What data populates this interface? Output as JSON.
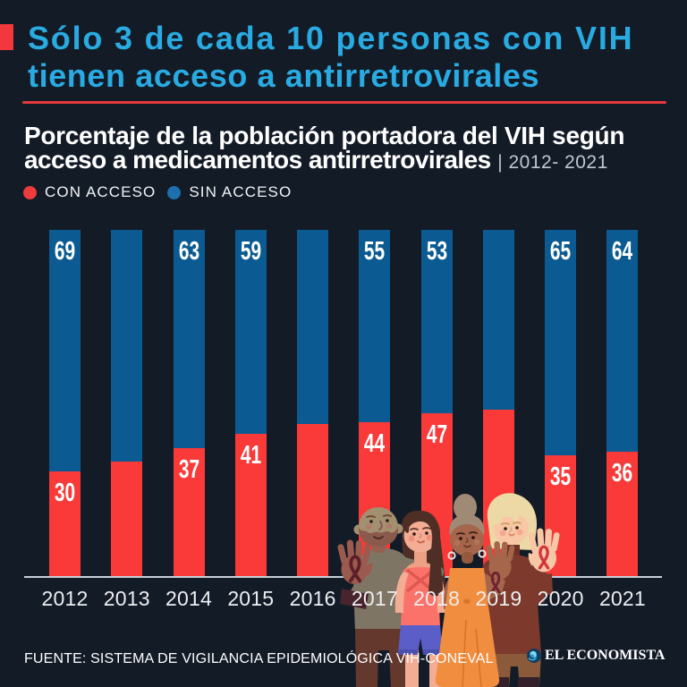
{
  "colors": {
    "background": "#131b27",
    "red": "#f93a39",
    "blue": "#0b5b92",
    "title_cyan": "#29abe2",
    "legend_red_dot": "#ee3b3d",
    "legend_blue_dot": "#1d6fae",
    "axis_line": "#c9cfd7",
    "white": "#ffffff"
  },
  "header": {
    "title_line1": "Sólo 3 de cada 10 personas con VIH",
    "title_line2": "tienen acceso a antirretrovirales"
  },
  "subtitle": {
    "line1": "Porcentaje de la población portadora del VIH según",
    "line2_bold": "acceso a medicamentos antirretrovirales",
    "period": "| 2012- 2021"
  },
  "legend": {
    "items": [
      {
        "label": "CON ACCESO",
        "color": "#ee3b3d"
      },
      {
        "label": "SIN ACCESO",
        "color": "#1d6fae"
      }
    ]
  },
  "chart_data": {
    "type": "bar",
    "stacked": true,
    "units": "percent",
    "title": "Porcentaje de la población portadora del VIH según acceso a medicamentos antirretrovirales",
    "period": "2012-2021",
    "categories": [
      "2012",
      "2013",
      "2014",
      "2015",
      "2016",
      "2017",
      "2018",
      "2019",
      "2020",
      "2021"
    ],
    "series": [
      {
        "name": "CON ACCESO",
        "color": "#f93a39",
        "values": [
          30,
          33,
          37,
          41,
          44,
          44,
          47,
          48,
          35,
          36
        ],
        "labels": [
          "30",
          "",
          "37",
          "41",
          "",
          "44",
          "47",
          "",
          "35",
          "36"
        ]
      },
      {
        "name": "SIN ACCESO",
        "color": "#0b5b92",
        "values": [
          69,
          67,
          63,
          59,
          56,
          55,
          53,
          52,
          65,
          64
        ],
        "labels": [
          "69",
          "",
          "63",
          "59",
          "",
          "55",
          "53",
          "",
          "65",
          "64"
        ]
      }
    ],
    "ylim": [
      0,
      100
    ],
    "grid": false,
    "legend_position": "top-left"
  },
  "footer": {
    "source": "FUENTE: SISTEMA DE VIGILANCIA EPIDEMIOLÓGICA VIH-CONEVAL",
    "logo_text": "EL ECONOMISTA"
  }
}
